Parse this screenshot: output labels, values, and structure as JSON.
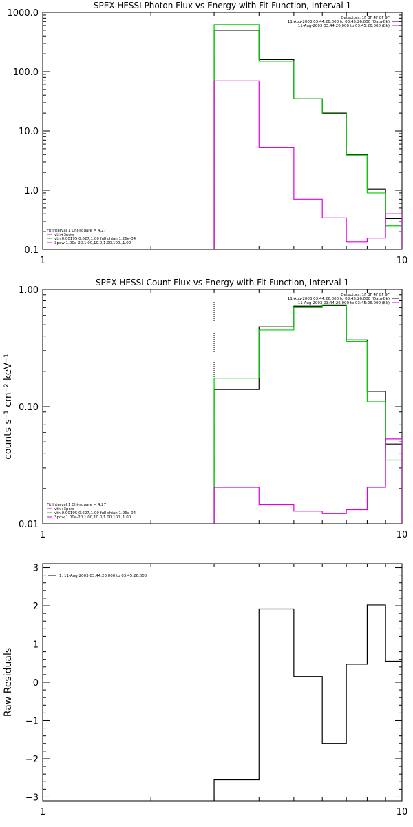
{
  "colors": {
    "black": "#000000",
    "green": "#00cc00",
    "magenta": "#e000e0"
  },
  "chart_data": [
    {
      "type": "line",
      "step": true,
      "title": "SPEX HESSI Photon Flux vs Energy with Fit Function, Interval 1",
      "xlabel": "",
      "ylabel": "",
      "xscale": "log",
      "yscale": "log",
      "xlim": [
        1,
        10
      ],
      "ylim": [
        0.1,
        1000
      ],
      "xticks": [
        1,
        10
      ],
      "xtick_labels": [
        "1",
        "10"
      ],
      "yticks": [
        0.1,
        1,
        10,
        100,
        1000
      ],
      "ytick_labels": [
        "0.1",
        "1.0",
        "10.0",
        "100.0",
        "1000.0"
      ],
      "legend_topright": [
        "Detectors: 1F 3F 4F 8F 9F",
        "11-Aug-2003 03:44:26.000 to 03:45:26.000 (Data-Bk)",
        "11-Aug-2003 03:44:26.000 to 03:45:26.000 (Bk)"
      ],
      "legend_bottomleft": [
        "Fit Interval 1    Chi-square = 4.27",
        "vth+3pow",
        "vth 0.00195,0.627,1.00  full chian 1.26e-04",
        "3pow 1.00e-20,1.00,10.0,1.00,100.,1.00"
      ],
      "vline_x": 3.0,
      "bin_edges": [
        3.0,
        4.0,
        5.0,
        6.0,
        7.0,
        8.0,
        9.0,
        10.0
      ],
      "series": [
        {
          "name": "Data-Bk",
          "color": "#000000",
          "values": [
            500,
            160,
            35,
            20,
            4.0,
            1.05,
            0.33
          ]
        },
        {
          "name": "vth+3pow",
          "color": "#00cc00",
          "values": [
            620,
            150,
            35,
            19.5,
            3.9,
            0.9,
            0.25
          ]
        },
        {
          "name": "Bk",
          "color": "#e000e0",
          "values": [
            70,
            5.2,
            0.7,
            0.34,
            0.135,
            0.155,
            0.4
          ]
        }
      ]
    },
    {
      "type": "line",
      "step": true,
      "title": "SPEX HESSI Count Flux vs Energy with Fit Function, Interval 1",
      "xlabel": "",
      "ylabel": "counts s⁻¹ cm⁻² keV⁻¹",
      "xscale": "log",
      "yscale": "log",
      "xlim": [
        1,
        10
      ],
      "ylim": [
        0.01,
        1.0
      ],
      "xticks": [
        1,
        10
      ],
      "xtick_labels": [
        "1",
        "10"
      ],
      "yticks": [
        0.01,
        0.1,
        1.0
      ],
      "ytick_labels": [
        "0.01",
        "0.10",
        "1.00"
      ],
      "legend_topright": [
        "Detectors: 1F 3F 4F 8F 9F",
        "11-Aug-2003 03:44:26.000 to 03:45:26.000 (Data-Bk)",
        "11-Aug-2003 03:44:26.000 to 03:45:26.000 (Bk)"
      ],
      "legend_bottomleft": [
        "Fit Interval 1    Chi-square = 4.27",
        "vth+3pow",
        "vth 0.00195,0.627,1.00  full chian 1.26e-04",
        "3pow 1.00e-20,1.00,10.0,1.00,100.,1.00"
      ],
      "vline_x": 3.0,
      "bin_edges": [
        3.0,
        4.0,
        5.0,
        6.0,
        7.0,
        8.0,
        9.0,
        10.0
      ],
      "series": [
        {
          "name": "Data-Bk",
          "color": "#000000",
          "values": [
            0.14,
            0.48,
            0.72,
            0.73,
            0.37,
            0.135,
            0.048
          ]
        },
        {
          "name": "vth+3pow",
          "color": "#00cc00",
          "values": [
            0.175,
            0.45,
            0.7,
            0.74,
            0.36,
            0.11,
            0.035
          ]
        },
        {
          "name": "Bk",
          "color": "#e000e0",
          "values": [
            0.0205,
            0.0145,
            0.0128,
            0.0122,
            0.0132,
            0.0205,
            0.053
          ]
        }
      ]
    },
    {
      "type": "line",
      "step": true,
      "title": "",
      "xlabel": "",
      "ylabel": "Raw Residuals",
      "xscale": "log",
      "yscale": "linear",
      "xlim": [
        1,
        10
      ],
      "ylim": [
        -3.1,
        3.1
      ],
      "xticks": [
        1,
        10
      ],
      "xtick_labels": [
        "1",
        "10"
      ],
      "yticks": [
        -3,
        -2,
        -1,
        0,
        1,
        2,
        3
      ],
      "ytick_labels": [
        "−3",
        "−2",
        "−1",
        "0",
        "1",
        "2",
        "3"
      ],
      "legend_topleft": [
        "1. 11-Aug-2003 03:44:26.000 to 03:45:26.000"
      ],
      "bin_edges": [
        3.0,
        4.0,
        5.0,
        6.0,
        7.0,
        8.0,
        9.0,
        10.0
      ],
      "series": [
        {
          "name": "1. 11-Aug-2003 03:44:26.000 to 03:45:26.000",
          "color": "#000000",
          "values": [
            -2.55,
            1.92,
            0.15,
            -1.6,
            0.47,
            2.02,
            0.55
          ]
        }
      ]
    }
  ]
}
